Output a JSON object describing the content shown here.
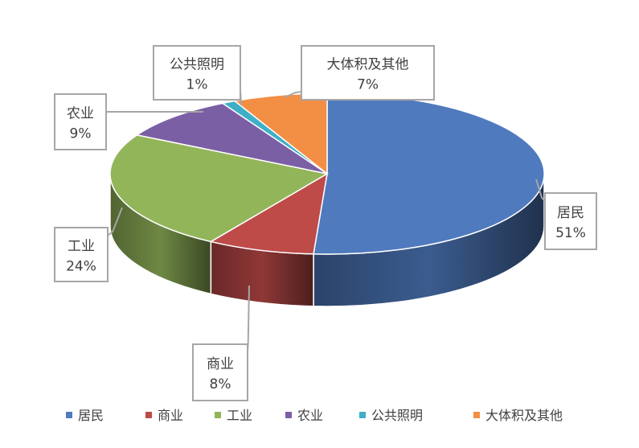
{
  "chart_data": {
    "type": "pie",
    "title": "",
    "style": "3d",
    "legend_position": "bottom",
    "slices": [
      {
        "label": "居民",
        "value": 51,
        "display": "51%",
        "color": "#4F7ABE"
      },
      {
        "label": "商业",
        "value": 8,
        "display": "8%",
        "color": "#BE4B48"
      },
      {
        "label": "工业",
        "value": 24,
        "display": "24%",
        "color": "#93B55A"
      },
      {
        "label": "农业",
        "value": 9,
        "display": "9%",
        "color": "#7B5FA4"
      },
      {
        "label": "公共照明",
        "value": 1,
        "display": "1%",
        "color": "#3EAFC7"
      },
      {
        "label": "大体积及其他",
        "value": 7,
        "display": "7%",
        "color": "#F38E45"
      }
    ]
  }
}
